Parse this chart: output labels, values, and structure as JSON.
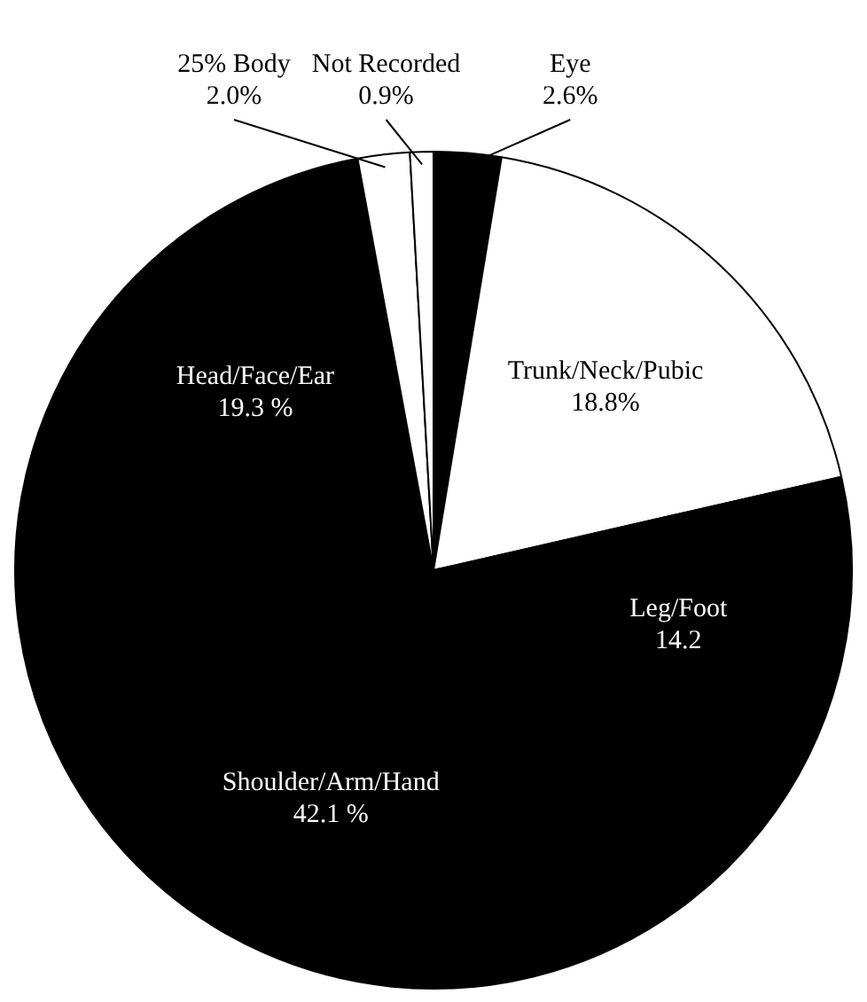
{
  "chart_data": {
    "type": "pie",
    "categories": [
      "Eye",
      "Trunk/Neck/Pubic",
      "Leg/Foot",
      "Shoulder/Arm/Hand",
      "Head/Face/Ear",
      "25% Body",
      "Not Recorded"
    ],
    "values": [
      2.6,
      18.8,
      14.2,
      42.1,
      19.3,
      2.0,
      0.9
    ],
    "colors": [
      "#000000",
      "#ffffff",
      "#000000",
      "#000000",
      "#000000",
      "#ffffff",
      "#ffffff"
    ],
    "value_labels": [
      "2.6%",
      "18.8%",
      "14.2",
      "42.1 %",
      "19.3 %",
      "2.0%",
      "0.9%"
    ],
    "legend": false
  }
}
